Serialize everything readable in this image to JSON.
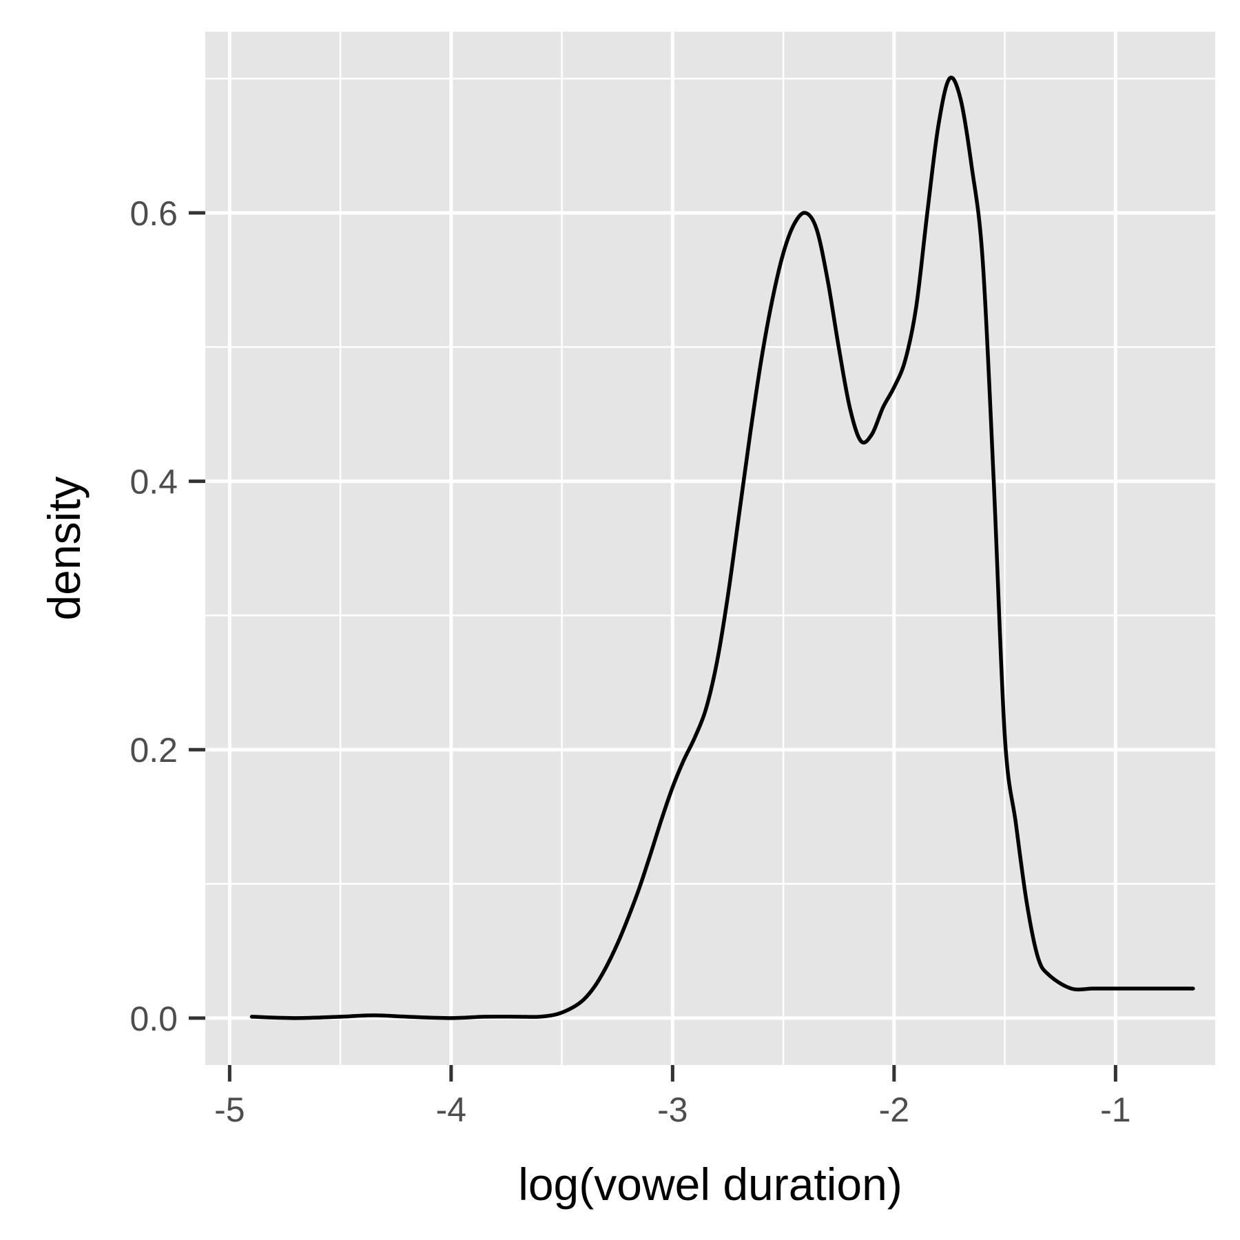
{
  "chart_data": {
    "type": "line",
    "title": "",
    "xlabel": "log(vowel duration)",
    "ylabel": "density",
    "xlim": [
      -5.11,
      -0.55
    ],
    "ylim": [
      -0.035,
      0.735
    ],
    "x_ticks": [
      {
        "value": -5,
        "label": "-5"
      },
      {
        "value": -4,
        "label": "-4"
      },
      {
        "value": -3,
        "label": "-3"
      },
      {
        "value": -2,
        "label": "-2"
      },
      {
        "value": -1,
        "label": "-1"
      }
    ],
    "y_ticks": [
      {
        "value": 0.0,
        "label": "0.0"
      },
      {
        "value": 0.2,
        "label": "0.2"
      },
      {
        "value": 0.4,
        "label": "0.4"
      },
      {
        "value": 0.6,
        "label": "0.6"
      }
    ],
    "grid": true,
    "panel_background": "#e5e5e5",
    "grid_color": "#ffffff",
    "line_color": "#000000",
    "series": [
      {
        "x": [
          -4.9,
          -4.7,
          -4.5,
          -4.35,
          -4.2,
          -4.0,
          -3.85,
          -3.7,
          -3.6,
          -3.52,
          -3.45,
          -3.4,
          -3.35,
          -3.3,
          -3.25,
          -3.2,
          -3.15,
          -3.1,
          -3.05,
          -3.0,
          -2.95,
          -2.9,
          -2.85,
          -2.8,
          -2.75,
          -2.7,
          -2.65,
          -2.6,
          -2.55,
          -2.5,
          -2.45,
          -2.4,
          -2.35,
          -2.3,
          -2.25,
          -2.2,
          -2.15,
          -2.1,
          -2.05,
          -2.0,
          -1.95,
          -1.9,
          -1.85,
          -1.8,
          -1.75,
          -1.7,
          -1.65,
          -1.6,
          -1.55,
          -1.5,
          -1.45,
          -1.4,
          -1.35,
          -1.3,
          -1.2,
          -1.1,
          -1.0,
          -0.9,
          -0.8,
          -0.75,
          -0.7,
          -0.65
        ],
        "y": [
          0.001,
          0.0,
          0.001,
          0.002,
          0.001,
          0.0,
          0.001,
          0.001,
          0.001,
          0.003,
          0.008,
          0.014,
          0.024,
          0.038,
          0.055,
          0.075,
          0.097,
          0.122,
          0.148,
          0.172,
          0.192,
          0.209,
          0.23,
          0.265,
          0.315,
          0.375,
          0.435,
          0.49,
          0.535,
          0.57,
          0.592,
          0.6,
          0.588,
          0.55,
          0.5,
          0.455,
          0.43,
          0.435,
          0.455,
          0.47,
          0.49,
          0.53,
          0.6,
          0.665,
          0.7,
          0.685,
          0.635,
          0.565,
          0.4,
          0.21,
          0.145,
          0.085,
          0.045,
          0.032,
          0.022,
          0.022,
          0.022,
          0.022,
          0.022,
          0.022,
          0.022,
          0.022
        ]
      }
    ]
  }
}
